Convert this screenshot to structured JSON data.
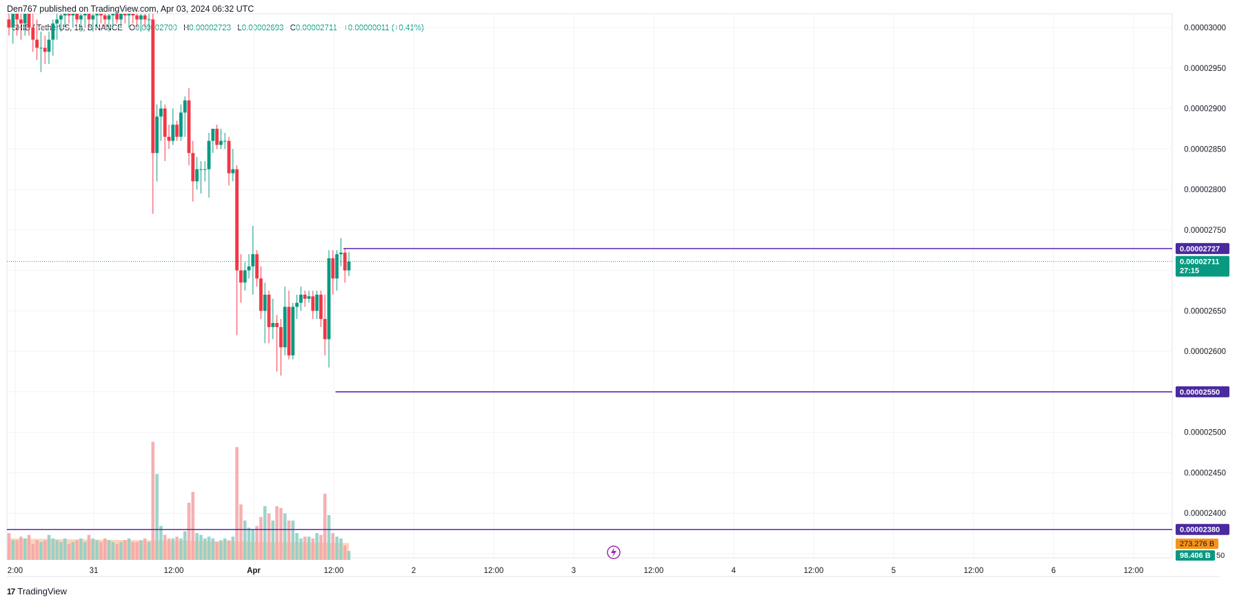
{
  "header": {
    "published_line": "Den767 published on TradingView.com, Apr 03, 2024 06:32 UTC"
  },
  "legend": {
    "symbol": "SHIB / TetherUS, 1h, BINANCE",
    "open_label": "O",
    "open": "0.00002700",
    "high_label": "H",
    "high": "0.00002723",
    "low_label": "L",
    "low": "0.00002693",
    "close_label": "C",
    "close": "0.00002711",
    "change": "+0.00000011 (+0.41%)"
  },
  "footer": {
    "brand": "TradingView",
    "logo_icon": "tradingview-logo-icon"
  },
  "price_tags": {
    "level_high": "0.00002727",
    "current_price": "0.00002711",
    "countdown": "27:15",
    "level_low": "0.00002550",
    "level_volume": "0.00002380",
    "volume_ma": "273.276 B",
    "volume_current": "98.406 B",
    "partial_tick": "50"
  },
  "colors": {
    "up": "#089981",
    "down": "#f23645",
    "level_line": "#5b21b6",
    "tag_purple": "#4a2a9e",
    "tag_green": "#089981",
    "vol_ma": "#f7931a",
    "vol_up": "#8fcfc5",
    "vol_down": "#f4a7aa",
    "vol_area": "#ffc9a8"
  },
  "chart_data": {
    "type": "candlestick",
    "title": "SHIB / TetherUS, 1h, BINANCE",
    "y_tick_labels": [
      "0.00003000",
      "0.00002950",
      "0.00002900",
      "0.00002850",
      "0.00002800",
      "0.00002750",
      "0.00002700",
      "0.00002650",
      "0.00002600",
      "0.00002550",
      "0.00002500",
      "0.00002450",
      "0.00002400",
      "0.00002350"
    ],
    "x_tick_labels": [
      "2:00",
      "31",
      "12:00",
      "Apr",
      "12:00",
      "2",
      "12:00",
      "3",
      "12:00",
      "4",
      "12:00",
      "5",
      "12:00",
      "6",
      "12:00"
    ],
    "horizontal_levels": [
      2.727e-05,
      2.55e-05,
      2.38e-05
    ],
    "current_price": 2.711e-05,
    "candles": [
      {
        "o": 3.01e-05,
        "h": 3.04e-05,
        "l": 2.99e-05,
        "c": 3e-05
      },
      {
        "o": 3e-05,
        "h": 3.03e-05,
        "l": 2.98e-05,
        "c": 3.02e-05
      },
      {
        "o": 3.02e-05,
        "h": 3.04e-05,
        "l": 2.99e-05,
        "c": 3.01e-05
      },
      {
        "o": 3.01e-05,
        "h": 3.03e-05,
        "l": 2.985e-05,
        "c": 3.005e-05
      },
      {
        "o": 3.005e-05,
        "h": 3.035e-05,
        "l": 2.99e-05,
        "c": 3.02e-05
      },
      {
        "o": 3.02e-05,
        "h": 3.04e-05,
        "l": 2.99e-05,
        "c": 3e-05
      },
      {
        "o": 3e-05,
        "h": 3.02e-05,
        "l": 2.97e-05,
        "c": 2.985e-05
      },
      {
        "o": 2.985e-05,
        "h": 3.01e-05,
        "l": 2.96e-05,
        "c": 2.975e-05
      },
      {
        "o": 2.975e-05,
        "h": 2.995e-05,
        "l": 2.945e-05,
        "c": 2.975e-05
      },
      {
        "o": 2.975e-05,
        "h": 2.99e-05,
        "l": 2.955e-05,
        "c": 2.97e-05
      },
      {
        "o": 2.97e-05,
        "h": 2.995e-05,
        "l": 2.955e-05,
        "c": 2.985e-05
      },
      {
        "o": 2.985e-05,
        "h": 3.01e-05,
        "l": 2.965e-05,
        "c": 3.005e-05
      },
      {
        "o": 3.005e-05,
        "h": 3.025e-05,
        "l": 2.985e-05,
        "c": 3.01e-05
      },
      {
        "o": 3.01e-05,
        "h": 3.03e-05,
        "l": 2.995e-05,
        "c": 3.015e-05
      },
      {
        "o": 3.015e-05,
        "h": 3.03e-05,
        "l": 3e-05,
        "c": 3.02e-05
      },
      {
        "o": 3.02e-05,
        "h": 3.035e-05,
        "l": 3.005e-05,
        "c": 3.015e-05
      },
      {
        "o": 3.015e-05,
        "h": 3.03e-05,
        "l": 3e-05,
        "c": 3.02e-05
      },
      {
        "o": 3.02e-05,
        "h": 3.035e-05,
        "l": 3.005e-05,
        "c": 3.01e-05
      },
      {
        "o": 3.01e-05,
        "h": 3.025e-05,
        "l": 2.995e-05,
        "c": 3.015e-05
      },
      {
        "o": 3.015e-05,
        "h": 3.03e-05,
        "l": 3e-05,
        "c": 3.02e-05
      },
      {
        "o": 3.02e-05,
        "h": 3.035e-05,
        "l": 3e-05,
        "c": 3.01e-05
      },
      {
        "o": 3.01e-05,
        "h": 3.025e-05,
        "l": 2.995e-05,
        "c": 3.015e-05
      },
      {
        "o": 3.015e-05,
        "h": 3.03e-05,
        "l": 3e-05,
        "c": 3.02e-05
      },
      {
        "o": 3.02e-05,
        "h": 3.035e-05,
        "l": 3.005e-05,
        "c": 3.015e-05
      },
      {
        "o": 3.015e-05,
        "h": 3.03e-05,
        "l": 3e-05,
        "c": 3.01e-05
      },
      {
        "o": 3.01e-05,
        "h": 3.025e-05,
        "l": 2.995e-05,
        "c": 3.015e-05
      },
      {
        "o": 3.015e-05,
        "h": 3.03e-05,
        "l": 3e-05,
        "c": 3.02e-05
      },
      {
        "o": 3.02e-05,
        "h": 3.035e-05,
        "l": 3.005e-05,
        "c": 3.01e-05
      },
      {
        "o": 3.01e-05,
        "h": 3.03e-05,
        "l": 3e-05,
        "c": 3.02e-05
      },
      {
        "o": 3.02e-05,
        "h": 3.035e-05,
        "l": 3.005e-05,
        "c": 3.015e-05
      },
      {
        "o": 3.015e-05,
        "h": 3.03e-05,
        "l": 3e-05,
        "c": 3.02e-05
      },
      {
        "o": 3.02e-05,
        "h": 3.035e-05,
        "l": 3.005e-05,
        "c": 3.015e-05
      },
      {
        "o": 3.015e-05,
        "h": 3.03e-05,
        "l": 3e-05,
        "c": 3.01e-05
      },
      {
        "o": 3.01e-05,
        "h": 3.025e-05,
        "l": 2.995e-05,
        "c": 3.015e-05
      },
      {
        "o": 3.015e-05,
        "h": 3.03e-05,
        "l": 3e-05,
        "c": 3.01e-05
      },
      {
        "o": 3.01e-05,
        "h": 3.03e-05,
        "l": 2.995e-05,
        "c": 3.01e-05
      },
      {
        "o": 3.01e-05,
        "h": 3.02e-05,
        "l": 2.77e-05,
        "c": 2.845e-05
      },
      {
        "o": 2.845e-05,
        "h": 2.905e-05,
        "l": 2.81e-05,
        "c": 2.89e-05
      },
      {
        "o": 2.89e-05,
        "h": 2.91e-05,
        "l": 2.86e-05,
        "c": 2.9e-05
      },
      {
        "o": 2.9e-05,
        "h": 2.905e-05,
        "l": 2.835e-05,
        "c": 2.865e-05
      },
      {
        "o": 2.865e-05,
        "h": 2.88e-05,
        "l": 2.85e-05,
        "c": 2.86e-05
      },
      {
        "o": 2.86e-05,
        "h": 2.9e-05,
        "l": 2.855e-05,
        "c": 2.88e-05
      },
      {
        "o": 2.88e-05,
        "h": 2.885e-05,
        "l": 2.86e-05,
        "c": 2.865e-05
      },
      {
        "o": 2.865e-05,
        "h": 2.905e-05,
        "l": 2.86e-05,
        "c": 2.895e-05
      },
      {
        "o": 2.895e-05,
        "h": 2.915e-05,
        "l": 2.865e-05,
        "c": 2.91e-05
      },
      {
        "o": 2.91e-05,
        "h": 2.925e-05,
        "l": 2.83e-05,
        "c": 2.845e-05
      },
      {
        "o": 2.845e-05,
        "h": 2.86e-05,
        "l": 2.785e-05,
        "c": 2.81e-05
      },
      {
        "o": 2.81e-05,
        "h": 2.84e-05,
        "l": 2.8e-05,
        "c": 2.825e-05
      },
      {
        "o": 2.825e-05,
        "h": 2.835e-05,
        "l": 2.795e-05,
        "c": 2.825e-05
      },
      {
        "o": 2.825e-05,
        "h": 2.835e-05,
        "l": 2.81e-05,
        "c": 2.825e-05
      },
      {
        "o": 2.825e-05,
        "h": 2.87e-05,
        "l": 2.79e-05,
        "c": 2.86e-05
      },
      {
        "o": 2.86e-05,
        "h": 2.875e-05,
        "l": 2.845e-05,
        "c": 2.875e-05
      },
      {
        "o": 2.875e-05,
        "h": 2.88e-05,
        "l": 2.85e-05,
        "c": 2.855e-05
      },
      {
        "o": 2.855e-05,
        "h": 2.875e-05,
        "l": 2.85e-05,
        "c": 2.86e-05
      },
      {
        "o": 2.86e-05,
        "h": 2.87e-05,
        "l": 2.85e-05,
        "c": 2.86e-05
      },
      {
        "o": 2.86e-05,
        "h": 2.865e-05,
        "l": 2.805e-05,
        "c": 2.82e-05
      },
      {
        "o": 2.82e-05,
        "h": 2.85e-05,
        "l": 2.81e-05,
        "c": 2.825e-05
      },
      {
        "o": 2.825e-05,
        "h": 2.83e-05,
        "l": 2.62e-05,
        "c": 2.7e-05
      },
      {
        "o": 2.7e-05,
        "h": 2.72e-05,
        "l": 2.66e-05,
        "c": 2.685e-05
      },
      {
        "o": 2.685e-05,
        "h": 2.71e-05,
        "l": 2.675e-05,
        "c": 2.7e-05
      },
      {
        "o": 2.7e-05,
        "h": 2.72e-05,
        "l": 2.69e-05,
        "c": 2.705e-05
      },
      {
        "o": 2.705e-05,
        "h": 2.755e-05,
        "l": 2.67e-05,
        "c": 2.72e-05
      },
      {
        "o": 2.72e-05,
        "h": 2.725e-05,
        "l": 2.68e-05,
        "c": 2.69e-05
      },
      {
        "o": 2.69e-05,
        "h": 2.705e-05,
        "l": 2.64e-05,
        "c": 2.65e-05
      },
      {
        "o": 2.65e-05,
        "h": 2.685e-05,
        "l": 2.61e-05,
        "c": 2.67e-05
      },
      {
        "o": 2.67e-05,
        "h": 2.675e-05,
        "l": 2.61e-05,
        "c": 2.63e-05
      },
      {
        "o": 2.63e-05,
        "h": 2.665e-05,
        "l": 2.615e-05,
        "c": 2.635e-05
      },
      {
        "o": 2.635e-05,
        "h": 2.645e-05,
        "l": 2.575e-05,
        "c": 2.63e-05
      },
      {
        "o": 2.63e-05,
        "h": 2.64e-05,
        "l": 2.57e-05,
        "c": 2.605e-05
      },
      {
        "o": 2.605e-05,
        "h": 2.68e-05,
        "l": 2.595e-05,
        "c": 2.655e-05
      },
      {
        "o": 2.655e-05,
        "h": 2.675e-05,
        "l": 2.59e-05,
        "c": 2.595e-05
      },
      {
        "o": 2.595e-05,
        "h": 2.66e-05,
        "l": 2.59e-05,
        "c": 2.655e-05
      },
      {
        "o": 2.655e-05,
        "h": 2.67e-05,
        "l": 2.64e-05,
        "c": 2.66e-05
      },
      {
        "o": 2.66e-05,
        "h": 2.68e-05,
        "l": 2.65e-05,
        "c": 2.67e-05
      },
      {
        "o": 2.67e-05,
        "h": 2.675e-05,
        "l": 2.655e-05,
        "c": 2.665e-05
      },
      {
        "o": 2.665e-05,
        "h": 2.675e-05,
        "l": 2.66e-05,
        "c": 2.668e-05
      },
      {
        "o": 2.668e-05,
        "h": 2.675e-05,
        "l": 2.64e-05,
        "c": 2.65e-05
      },
      {
        "o": 2.65e-05,
        "h": 2.675e-05,
        "l": 2.64e-05,
        "c": 2.67e-05
      },
      {
        "o": 2.67e-05,
        "h": 2.675e-05,
        "l": 2.63e-05,
        "c": 2.64e-05
      },
      {
        "o": 2.64e-05,
        "h": 2.67e-05,
        "l": 2.595e-05,
        "c": 2.615e-05
      },
      {
        "o": 2.615e-05,
        "h": 2.725e-05,
        "l": 2.58e-05,
        "c": 2.715e-05
      },
      {
        "o": 2.715e-05,
        "h": 2.725e-05,
        "l": 2.67e-05,
        "c": 2.69e-05
      },
      {
        "o": 2.69e-05,
        "h": 2.725e-05,
        "l": 2.675e-05,
        "c": 2.72e-05
      },
      {
        "o": 2.72e-05,
        "h": 2.74e-05,
        "l": 2.705e-05,
        "c": 2.722e-05
      },
      {
        "o": 2.722e-05,
        "h": 2.727e-05,
        "l": 2.685e-05,
        "c": 2.7e-05
      },
      {
        "o": 2.7e-05,
        "h": 2.723e-05,
        "l": 2.693e-05,
        "c": 2.711e-05
      }
    ],
    "volume": [
      0.75,
      0.55,
      0.55,
      0.65,
      0.6,
      0.7,
      0.45,
      0.55,
      0.5,
      0.55,
      0.7,
      0.6,
      0.55,
      0.5,
      0.6,
      0.45,
      0.5,
      0.55,
      0.6,
      0.5,
      0.7,
      0.6,
      0.55,
      0.5,
      0.6,
      0.55,
      0.5,
      0.45,
      0.5,
      0.55,
      0.6,
      0.5,
      0.5,
      0.55,
      0.6,
      0.5,
      3.3,
      2.4,
      0.95,
      0.7,
      0.6,
      0.6,
      0.65,
      0.6,
      0.8,
      1.6,
      1.9,
      0.75,
      0.7,
      0.6,
      0.65,
      0.6,
      0.5,
      0.55,
      0.6,
      0.55,
      0.65,
      3.15,
      1.55,
      1.1,
      0.9,
      0.85,
      0.95,
      1.2,
      1.5,
      1.3,
      1.1,
      1.5,
      1.45,
      1.3,
      1.1,
      1.1,
      0.75,
      0.6,
      0.65,
      0.65,
      0.6,
      0.75,
      0.7,
      1.85,
      1.25,
      0.75,
      0.65,
      0.6,
      0.4,
      0.25
    ]
  }
}
